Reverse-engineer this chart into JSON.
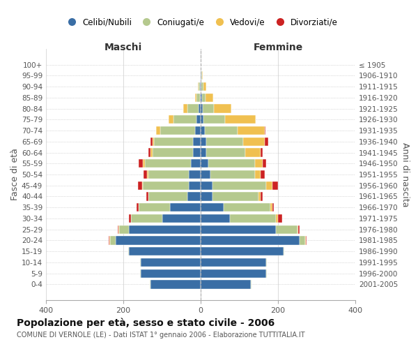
{
  "age_groups": [
    "0-4",
    "5-9",
    "10-14",
    "15-19",
    "20-24",
    "25-29",
    "30-34",
    "35-39",
    "40-44",
    "45-49",
    "50-54",
    "55-59",
    "60-64",
    "65-69",
    "70-74",
    "75-79",
    "80-84",
    "85-89",
    "90-94",
    "95-99",
    "100+"
  ],
  "birth_years": [
    "2001-2005",
    "1996-2000",
    "1991-1995",
    "1986-1990",
    "1981-1985",
    "1976-1980",
    "1971-1975",
    "1966-1970",
    "1961-1965",
    "1956-1960",
    "1951-1955",
    "1946-1950",
    "1941-1945",
    "1936-1940",
    "1931-1935",
    "1926-1930",
    "1921-1925",
    "1916-1920",
    "1911-1915",
    "1906-1910",
    "≤ 1905"
  ],
  "maschi": {
    "celibi": [
      130,
      155,
      155,
      185,
      220,
      185,
      100,
      80,
      35,
      30,
      30,
      25,
      20,
      20,
      15,
      10,
      5,
      2,
      1,
      0,
      0
    ],
    "coniugati": [
      2,
      2,
      2,
      2,
      15,
      25,
      80,
      80,
      100,
      120,
      105,
      120,
      105,
      100,
      90,
      60,
      30,
      8,
      4,
      0,
      0
    ],
    "vedovi": [
      0,
      0,
      0,
      0,
      1,
      2,
      1,
      1,
      1,
      2,
      3,
      5,
      5,
      5,
      10,
      12,
      10,
      5,
      2,
      0,
      0
    ],
    "divorziati": [
      0,
      0,
      0,
      0,
      1,
      2,
      5,
      5,
      5,
      10,
      10,
      10,
      5,
      5,
      0,
      0,
      0,
      0,
      0,
      0,
      0
    ]
  },
  "femmine": {
    "nubili": [
      130,
      170,
      170,
      215,
      255,
      195,
      75,
      60,
      30,
      30,
      25,
      20,
      15,
      15,
      10,
      8,
      5,
      3,
      2,
      1,
      0
    ],
    "coniugate": [
      2,
      2,
      2,
      2,
      15,
      55,
      120,
      120,
      120,
      140,
      115,
      120,
      100,
      95,
      85,
      55,
      30,
      10,
      5,
      2,
      0
    ],
    "vedove": [
      0,
      0,
      0,
      0,
      2,
      3,
      5,
      5,
      5,
      15,
      15,
      20,
      40,
      55,
      70,
      80,
      45,
      20,
      8,
      3,
      0
    ],
    "divorziate": [
      0,
      0,
      0,
      0,
      1,
      2,
      10,
      5,
      5,
      15,
      10,
      10,
      5,
      10,
      2,
      0,
      0,
      0,
      0,
      0,
      0
    ]
  },
  "colors": {
    "celibi": "#3a6ea5",
    "coniugati": "#b5c98e",
    "vedovi": "#f0c050",
    "divorziati": "#cc2222"
  },
  "xlim": 400,
  "title": "Popolazione per età, sesso e stato civile - 2006",
  "subtitle": "COMUNE DI VERNOLE (LE) - Dati ISTAT 1° gennaio 2006 - Elaborazione TUTTITALIA.IT",
  "ylabel_left": "Fasce di età",
  "ylabel_right": "Anni di nascita",
  "xlabel_left": "Maschi",
  "xlabel_right": "Femmine"
}
